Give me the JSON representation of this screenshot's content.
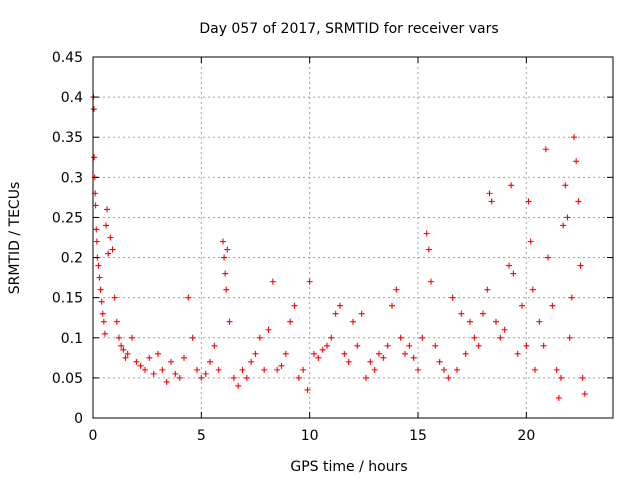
{
  "chart_data": {
    "type": "scatter",
    "title": "Day 057 of 2017, SRMTID for receiver vars",
    "xlabel": "GPS time / hours",
    "ylabel": "SRMTID / TECUs",
    "xlim": [
      0,
      24
    ],
    "ylim": [
      0,
      0.45
    ],
    "xticks": [
      0,
      5,
      10,
      15,
      20
    ],
    "xtick_labels": [
      "0",
      "5",
      "10",
      "15",
      "20"
    ],
    "yticks": [
      0,
      0.05,
      0.1,
      0.15,
      0.2,
      0.25,
      0.3,
      0.35,
      0.4,
      0.45
    ],
    "ytick_labels": [
      "0",
      "0.05",
      "0.1",
      "0.15",
      "0.2",
      "0.25",
      "0.3",
      "0.35",
      "0.4",
      "0.45"
    ],
    "grid": true,
    "marker": "+",
    "marker_color": "#ff0000",
    "series": [
      {
        "name": "SRMTID",
        "points": [
          [
            0.02,
            0.4
          ],
          [
            0.04,
            0.385
          ],
          [
            0.05,
            0.325
          ],
          [
            0.08,
            0.3
          ],
          [
            0.1,
            0.28
          ],
          [
            0.12,
            0.265
          ],
          [
            0.15,
            0.235
          ],
          [
            0.18,
            0.22
          ],
          [
            0.2,
            0.2
          ],
          [
            0.25,
            0.19
          ],
          [
            0.3,
            0.175
          ],
          [
            0.35,
            0.16
          ],
          [
            0.4,
            0.145
          ],
          [
            0.45,
            0.13
          ],
          [
            0.5,
            0.12
          ],
          [
            0.55,
            0.105
          ],
          [
            0.6,
            0.24
          ],
          [
            0.65,
            0.26
          ],
          [
            0.7,
            0.205
          ],
          [
            0.8,
            0.225
          ],
          [
            0.9,
            0.21
          ],
          [
            1.0,
            0.15
          ],
          [
            1.1,
            0.12
          ],
          [
            1.2,
            0.1
          ],
          [
            1.3,
            0.09
          ],
          [
            1.4,
            0.085
          ],
          [
            1.5,
            0.075
          ],
          [
            1.6,
            0.08
          ],
          [
            1.8,
            0.1
          ],
          [
            2.0,
            0.07
          ],
          [
            2.2,
            0.065
          ],
          [
            2.4,
            0.06
          ],
          [
            2.6,
            0.075
          ],
          [
            2.8,
            0.055
          ],
          [
            3.0,
            0.08
          ],
          [
            3.2,
            0.06
          ],
          [
            3.4,
            0.045
          ],
          [
            3.6,
            0.07
          ],
          [
            3.8,
            0.055
          ],
          [
            4.0,
            0.05
          ],
          [
            4.2,
            0.075
          ],
          [
            4.4,
            0.15
          ],
          [
            4.6,
            0.1
          ],
          [
            4.8,
            0.06
          ],
          [
            5.0,
            0.05
          ],
          [
            5.2,
            0.055
          ],
          [
            5.4,
            0.07
          ],
          [
            5.6,
            0.09
          ],
          [
            5.8,
            0.06
          ],
          [
            6.0,
            0.22
          ],
          [
            6.05,
            0.2
          ],
          [
            6.1,
            0.18
          ],
          [
            6.15,
            0.16
          ],
          [
            6.2,
            0.21
          ],
          [
            6.3,
            0.12
          ],
          [
            6.5,
            0.05
          ],
          [
            6.7,
            0.04
          ],
          [
            6.9,
            0.06
          ],
          [
            7.1,
            0.05
          ],
          [
            7.3,
            0.07
          ],
          [
            7.5,
            0.08
          ],
          [
            7.7,
            0.1
          ],
          [
            7.9,
            0.06
          ],
          [
            8.1,
            0.11
          ],
          [
            8.3,
            0.17
          ],
          [
            8.5,
            0.06
          ],
          [
            8.7,
            0.065
          ],
          [
            8.9,
            0.08
          ],
          [
            9.1,
            0.12
          ],
          [
            9.3,
            0.14
          ],
          [
            9.5,
            0.05
          ],
          [
            9.7,
            0.06
          ],
          [
            9.9,
            0.035
          ],
          [
            10.0,
            0.17
          ],
          [
            10.2,
            0.08
          ],
          [
            10.4,
            0.075
          ],
          [
            10.6,
            0.085
          ],
          [
            10.8,
            0.09
          ],
          [
            11.0,
            0.1
          ],
          [
            11.2,
            0.13
          ],
          [
            11.4,
            0.14
          ],
          [
            11.6,
            0.08
          ],
          [
            11.8,
            0.07
          ],
          [
            12.0,
            0.12
          ],
          [
            12.2,
            0.09
          ],
          [
            12.4,
            0.13
          ],
          [
            12.6,
            0.05
          ],
          [
            12.8,
            0.07
          ],
          [
            13.0,
            0.06
          ],
          [
            13.2,
            0.08
          ],
          [
            13.4,
            0.075
          ],
          [
            13.6,
            0.09
          ],
          [
            13.8,
            0.14
          ],
          [
            14.0,
            0.16
          ],
          [
            14.2,
            0.1
          ],
          [
            14.4,
            0.08
          ],
          [
            14.6,
            0.09
          ],
          [
            14.8,
            0.075
          ],
          [
            15.0,
            0.06
          ],
          [
            15.2,
            0.1
          ],
          [
            15.4,
            0.23
          ],
          [
            15.5,
            0.21
          ],
          [
            15.6,
            0.17
          ],
          [
            15.8,
            0.09
          ],
          [
            16.0,
            0.07
          ],
          [
            16.2,
            0.06
          ],
          [
            16.4,
            0.05
          ],
          [
            16.6,
            0.15
          ],
          [
            16.8,
            0.06
          ],
          [
            17.0,
            0.13
          ],
          [
            17.2,
            0.08
          ],
          [
            17.4,
            0.12
          ],
          [
            17.6,
            0.1
          ],
          [
            17.8,
            0.09
          ],
          [
            18.0,
            0.13
          ],
          [
            18.2,
            0.16
          ],
          [
            18.3,
            0.28
          ],
          [
            18.4,
            0.27
          ],
          [
            18.6,
            0.12
          ],
          [
            18.8,
            0.1
          ],
          [
            19.0,
            0.11
          ],
          [
            19.2,
            0.19
          ],
          [
            19.3,
            0.29
          ],
          [
            19.4,
            0.18
          ],
          [
            19.6,
            0.08
          ],
          [
            19.8,
            0.14
          ],
          [
            20.0,
            0.09
          ],
          [
            20.1,
            0.27
          ],
          [
            20.2,
            0.22
          ],
          [
            20.3,
            0.16
          ],
          [
            20.4,
            0.06
          ],
          [
            20.6,
            0.12
          ],
          [
            20.8,
            0.09
          ],
          [
            20.9,
            0.335
          ],
          [
            21.0,
            0.2
          ],
          [
            21.2,
            0.14
          ],
          [
            21.4,
            0.06
          ],
          [
            21.5,
            0.025
          ],
          [
            21.6,
            0.05
          ],
          [
            21.7,
            0.24
          ],
          [
            21.8,
            0.29
          ],
          [
            21.9,
            0.25
          ],
          [
            22.0,
            0.1
          ],
          [
            22.1,
            0.15
          ],
          [
            22.2,
            0.35
          ],
          [
            22.3,
            0.32
          ],
          [
            22.4,
            0.27
          ],
          [
            22.5,
            0.19
          ],
          [
            22.6,
            0.05
          ],
          [
            22.7,
            0.03
          ]
        ]
      }
    ]
  }
}
